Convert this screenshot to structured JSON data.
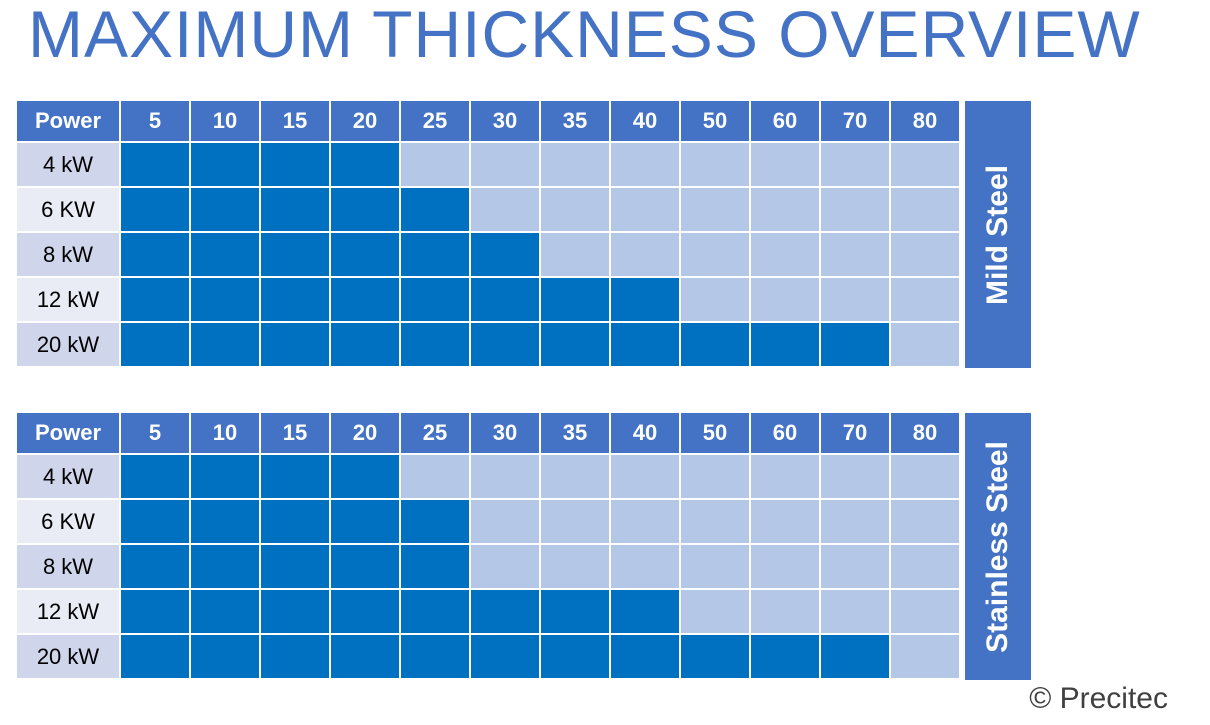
{
  "title": "MAXIMUM THICKNESS OVERVIEW",
  "tables": [
    {
      "label": "Mild Steel",
      "header": "Power",
      "columns": [
        5,
        10,
        15,
        20,
        25,
        30,
        35,
        40,
        50,
        60,
        70,
        80
      ],
      "rows": [
        {
          "power": "4 kW",
          "max": 20
        },
        {
          "power": "6 KW",
          "max": 25
        },
        {
          "power": "8 kW",
          "max": 30
        },
        {
          "power": "12 kW",
          "max": 40
        },
        {
          "power": "20 kW",
          "max": 70
        }
      ]
    },
    {
      "label": "Stainless Steel",
      "header": "Power",
      "columns": [
        5,
        10,
        15,
        20,
        25,
        30,
        35,
        40,
        50,
        60,
        70,
        80
      ],
      "rows": [
        {
          "power": "4 kW",
          "max": 20
        },
        {
          "power": "6 KW",
          "max": 25
        },
        {
          "power": "8 kW",
          "max": 25
        },
        {
          "power": "12 kW",
          "max": 40
        },
        {
          "power": "20 kW",
          "max": 70
        }
      ]
    }
  ],
  "footer": "© Precitec"
}
